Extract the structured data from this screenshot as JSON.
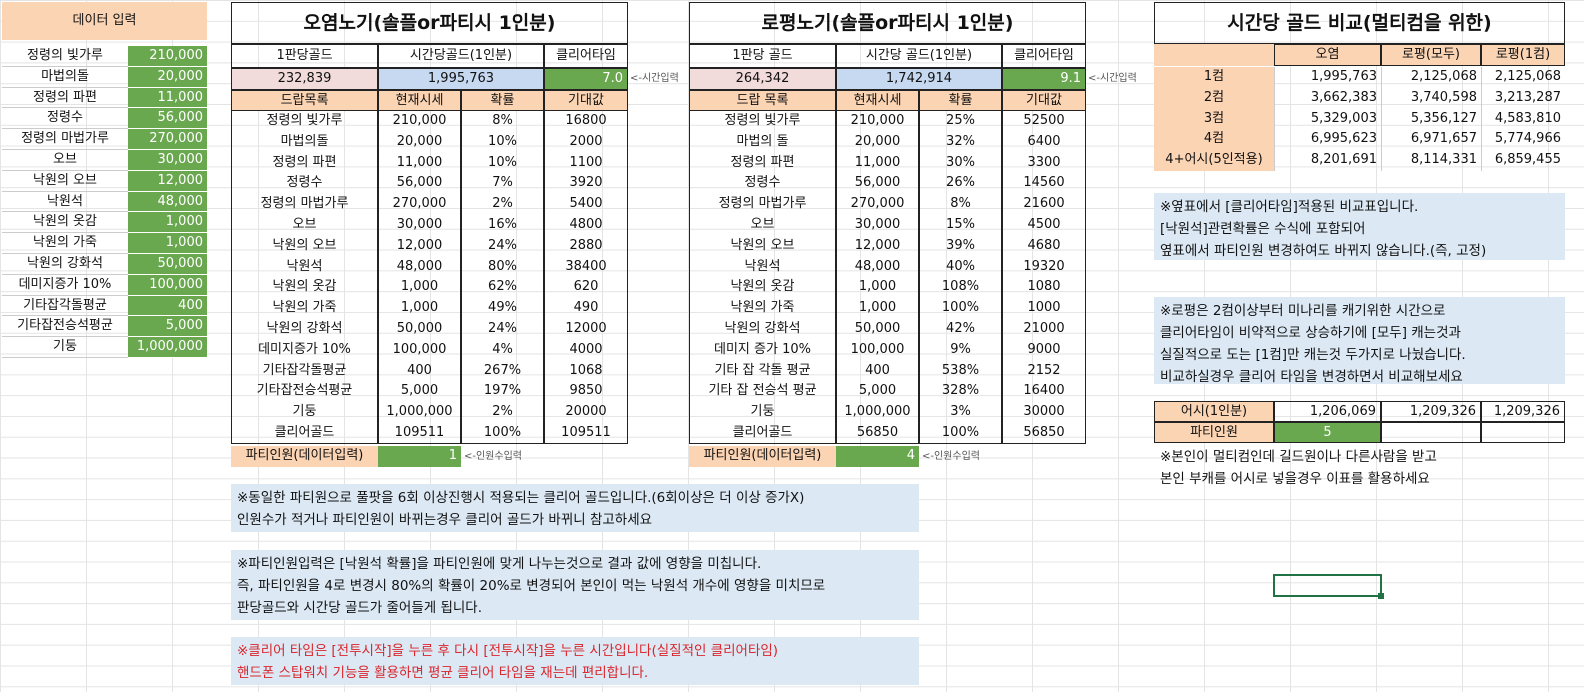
{
  "input_panel": {
    "header": "데이터 입력",
    "items": [
      {
        "name": "정령의 빛가루",
        "value": "210,000"
      },
      {
        "name": "마법의돌",
        "value": "20,000"
      },
      {
        "name": "정령의 파편",
        "value": "11,000"
      },
      {
        "name": "정령수",
        "value": "56,000"
      },
      {
        "name": "정령의 마법가루",
        "value": "270,000"
      },
      {
        "name": "오브",
        "value": "30,000"
      },
      {
        "name": "낙원의 오브",
        "value": "12,000"
      },
      {
        "name": "낙원석",
        "value": "48,000"
      },
      {
        "name": "낙원의 옷감",
        "value": "1,000"
      },
      {
        "name": "낙원의 가죽",
        "value": "1,000"
      },
      {
        "name": "낙원의 강화석",
        "value": "50,000"
      },
      {
        "name": "데미지증가 10%",
        "value": "100,000"
      },
      {
        "name": "기타잡각돌평균",
        "value": "400"
      },
      {
        "name": "기타잡전승석평균",
        "value": "5,000"
      },
      {
        "name": "기둥",
        "value": "1,000,000"
      }
    ]
  },
  "oyeom": {
    "title": "오염노기(솔플or파티시 1인분)",
    "col_headers": [
      "1판당골드",
      "시간당골드(1인분)",
      "클리어타임"
    ],
    "summary": {
      "gold_per_run": "232,839",
      "gold_per_hour": "1,995,763",
      "clear_time": "7.0"
    },
    "time_hint": "<-시간입력",
    "drop_headers": [
      "드랍목록",
      "현재시세",
      "확률",
      "기대값"
    ],
    "rows": [
      [
        "정령의 빛가루",
        "210,000",
        "8%",
        "16800"
      ],
      [
        "마법의돌",
        "20,000",
        "10%",
        "2000"
      ],
      [
        "정령의 파편",
        "11,000",
        "10%",
        "1100"
      ],
      [
        "정령수",
        "56,000",
        "7%",
        "3920"
      ],
      [
        "정령의 마법가루",
        "270,000",
        "2%",
        "5400"
      ],
      [
        "오브",
        "30,000",
        "16%",
        "4800"
      ],
      [
        "낙원의 오브",
        "12,000",
        "24%",
        "2880"
      ],
      [
        "낙원석",
        "48,000",
        "80%",
        "38400"
      ],
      [
        "낙원의 옷감",
        "1,000",
        "62%",
        "620"
      ],
      [
        "낙원의 가죽",
        "1,000",
        "49%",
        "490"
      ],
      [
        "낙원의 강화석",
        "50,000",
        "24%",
        "12000"
      ],
      [
        "데미지증가 10%",
        "100,000",
        "4%",
        "4000"
      ],
      [
        "기타잡각돌평균",
        "400",
        "267%",
        "1068"
      ],
      [
        "기타잡전승석평균",
        "5,000",
        "197%",
        "9850"
      ],
      [
        "기둥",
        "1,000,000",
        "2%",
        "20000"
      ],
      [
        "클리어골드",
        "109511",
        "100%",
        "109511"
      ]
    ],
    "party_label": "파티인원(데이터입력)",
    "party_value": "1",
    "party_hint": "<-인원수입력"
  },
  "ropyeong": {
    "title": "로평노기(솔플or파티시 1인분)",
    "col_headers": [
      "1판당 골드",
      "시간당 골드(1인분)",
      "클리어타임"
    ],
    "summary": {
      "gold_per_run": "264,342",
      "gold_per_hour": "1,742,914",
      "clear_time": "9.1"
    },
    "time_hint": "<-시간입력",
    "drop_headers": [
      "드랍 목록",
      "현재시세",
      "확률",
      "기대값"
    ],
    "rows": [
      [
        "정령의 빛가루",
        "210,000",
        "25%",
        "52500"
      ],
      [
        "마법의 돌",
        "20,000",
        "32%",
        "6400"
      ],
      [
        "정령의 파편",
        "11,000",
        "30%",
        "3300"
      ],
      [
        "정령수",
        "56,000",
        "26%",
        "14560"
      ],
      [
        "정령의 마법가루",
        "270,000",
        "8%",
        "21600"
      ],
      [
        "오브",
        "30,000",
        "15%",
        "4500"
      ],
      [
        "낙원의 오브",
        "12,000",
        "39%",
        "4680"
      ],
      [
        "낙원석",
        "48,000",
        "40%",
        "19320"
      ],
      [
        "낙원의 옷감",
        "1,000",
        "108%",
        "1080"
      ],
      [
        "낙원의 가죽",
        "1,000",
        "100%",
        "1000"
      ],
      [
        "낙원의 강화석",
        "50,000",
        "42%",
        "21000"
      ],
      [
        "데미지 증가 10%",
        "100,000",
        "9%",
        "9000"
      ],
      [
        "기타 잡 각돌 평균",
        "400",
        "538%",
        "2152"
      ],
      [
        "기타 잡 전승석 평균",
        "5,000",
        "328%",
        "16400"
      ],
      [
        "기둥",
        "1,000,000",
        "3%",
        "30000"
      ],
      [
        "클리어골드",
        "56850",
        "100%",
        "56850"
      ]
    ],
    "party_label": "파티인원(데이터입력)",
    "party_value": "4",
    "party_hint": "<-인원수입력"
  },
  "compare": {
    "title": "시간당 골드 비교(멀티컴을 위한)",
    "col_headers": [
      "오염",
      "로평(모두)",
      "로평(1컴)"
    ],
    "rows": [
      [
        "1컴",
        "1,995,763",
        "2,125,068",
        "2,125,068"
      ],
      [
        "2컴",
        "3,662,383",
        "3,740,598",
        "3,213,287"
      ],
      [
        "3컴",
        "5,329,003",
        "5,356,127",
        "4,583,810"
      ],
      [
        "4컴",
        "6,995,623",
        "6,971,657",
        "5,774,966"
      ],
      [
        "4+어시(5인적용)",
        "8,201,691",
        "8,114,331",
        "6,859,455"
      ]
    ],
    "note1": [
      "※옆표에서 [클리어타임]적용된 비교표입니다.",
      "[낙원석]관련확률은 수식에 포함되어",
      "옆표에서 파티인원 변경하여도 바뀌지 않습니다.(즉, 고정)"
    ],
    "note2": [
      "※로평은 2컴이상부터 미나리를 캐기위한 시간으로",
      "클리어타임이 비약적으로 상승하기에 [모두] 캐는것과",
      "실질적으로 도는 [1컴]만 캐는것 두가지로 나눴습니다.",
      "비교하실경우 클리어 타임을 변경하면서 비교해보세요"
    ],
    "assist_label": "어시(1인분)",
    "assist_values": [
      "1,206,069",
      "1,209,326",
      "1,209,326"
    ],
    "party_label": "파티인원",
    "party_value": "5",
    "note3": [
      "※본인이 멀티컴인데 길드원이나 다른사람을 받고",
      "본인 부캐를 어시로 넣을경우 이표를 활용하세요"
    ]
  },
  "bottom_notes": {
    "note1": [
      "※동일한 파티원으로 풀팟을 6회 이상진행시 적용되는 클리어 골드입니다.(6회이상은 더 이상 증가X)",
      "인원수가 적거나 파티인원이 바뀌는경우 클리어 골드가 바뀌니 참고하세요"
    ],
    "note2": [
      "※파티인원입력은 [낙원석 확률]을 파티인원에 맞게 나누는것으로 결과 값에 영향을 미칩니다.",
      "즉, 파티인원을 4로 변경시 80%의 확률이 20%로 변경되어 본인이 먹는 낙원석 개수에 영향을 미치므로",
      "판당골드와 시간당 골드가 줄어들게 됩니다."
    ],
    "note3": [
      "※클리어 타임은 [전투시작]을 누른 후 다시 [전투시작]을 누른 시간입니다(실질적인 클리어타임)",
      "핸드폰 스탑워치 기능을 활용하면 평균 클리어 타임을 재는데 편리합니다."
    ]
  },
  "colors": {
    "peach": "#fbd4b4",
    "green": "#6aa84f",
    "blue": "#c6d9f1",
    "pink": "#f2dcdb",
    "note_bg": "#dce9f5",
    "red_text": "#d9262c"
  }
}
